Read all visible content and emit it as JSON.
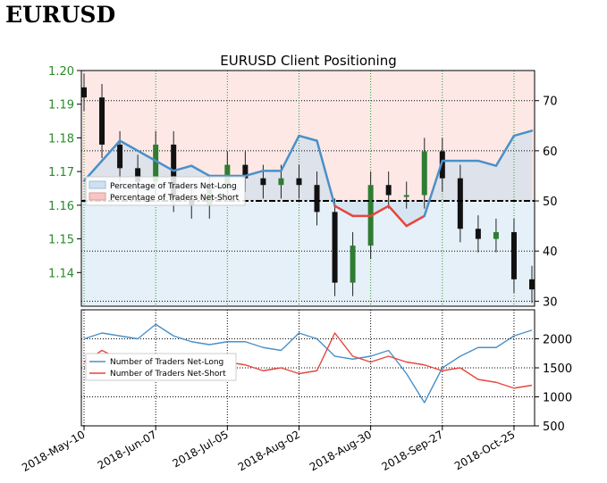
{
  "header": {
    "title": "EURUSD"
  },
  "chart_data": [
    {
      "type": "line",
      "title": "EURUSD Client Positioning",
      "legend_position": "center-left",
      "x": [
        "2018-May-10",
        "2018-May-17",
        "2018-May-24",
        "2018-May-31",
        "2018-Jun-07",
        "2018-Jun-14",
        "2018-Jun-21",
        "2018-Jun-28",
        "2018-Jul-05",
        "2018-Jul-12",
        "2018-Jul-19",
        "2018-Jul-26",
        "2018-Aug-02",
        "2018-Aug-09",
        "2018-Aug-16",
        "2018-Aug-23",
        "2018-Aug-30",
        "2018-Sep-06",
        "2018-Sep-13",
        "2018-Sep-20",
        "2018-Sep-27",
        "2018-Oct-04",
        "2018-Oct-11",
        "2018-Oct-18",
        "2018-Oct-25",
        "2018-Nov-01"
      ],
      "x_ticks": [
        "2018-May-10",
        "2018-Jun-07",
        "2018-Jul-05",
        "2018-Aug-02",
        "2018-Aug-30",
        "2018-Sep-27",
        "2018-Oct-25"
      ],
      "left_axis": {
        "ticks": [
          "1.14",
          "1.15",
          "1.16",
          "1.17",
          "1.18",
          "1.19",
          "1.20"
        ],
        "ylim": [
          1.13,
          1.2
        ]
      },
      "right_axis": {
        "ticks": [
          "30",
          "40",
          "50",
          "60",
          "70"
        ],
        "ylim": [
          29,
          76
        ]
      },
      "reference_line": 50,
      "price_close": [
        1.192,
        1.178,
        1.171,
        1.167,
        1.178,
        1.162,
        1.16,
        1.165,
        1.172,
        1.168,
        1.166,
        1.168,
        1.166,
        1.158,
        1.137,
        1.148,
        1.166,
        1.163,
        1.163,
        1.176,
        1.168,
        1.153,
        1.15,
        1.152,
        1.138,
        1.135
      ],
      "series": [
        {
          "name": "Percentage of Traders Net-Long",
          "color": "#4a90c8",
          "values": [
            54,
            58,
            62,
            60,
            58,
            56,
            57,
            55,
            55,
            55,
            56,
            56,
            63,
            62,
            49,
            47,
            47,
            49,
            45,
            47,
            58,
            58,
            58,
            57,
            63,
            64
          ]
        },
        {
          "name": "Percentage of Traders Net-Short",
          "color": "#e8453c",
          "values": [
            46,
            42,
            38,
            40,
            42,
            44,
            43,
            45,
            45,
            45,
            44,
            44,
            37,
            38,
            51,
            53,
            53,
            51,
            55,
            53,
            42,
            42,
            42,
            43,
            37,
            36
          ]
        }
      ]
    },
    {
      "type": "line",
      "legend_position": "center-left",
      "right_axis": {
        "ticks": [
          "500",
          "1000",
          "1500",
          "2000"
        ],
        "ylim": [
          500,
          2500
        ]
      },
      "series": [
        {
          "name": "Number of Traders Net-Long",
          "color": "#4a90c8",
          "values": [
            2000,
            2100,
            2050,
            2000,
            2250,
            2050,
            1950,
            1900,
            1950,
            1950,
            1850,
            1800,
            2100,
            2000,
            1700,
            1650,
            1700,
            1800,
            1400,
            900,
            1500,
            1700,
            1850,
            1850,
            2050,
            2150
          ]
        },
        {
          "name": "Number of Traders Net-Short",
          "color": "#e8453c",
          "values": [
            1600,
            1800,
            1650,
            1550,
            1700,
            1500,
            1700,
            1450,
            1600,
            1550,
            1450,
            1500,
            1400,
            1450,
            2100,
            1700,
            1600,
            1700,
            1600,
            1550,
            1450,
            1500,
            1300,
            1250,
            1150,
            1200
          ]
        }
      ]
    }
  ]
}
